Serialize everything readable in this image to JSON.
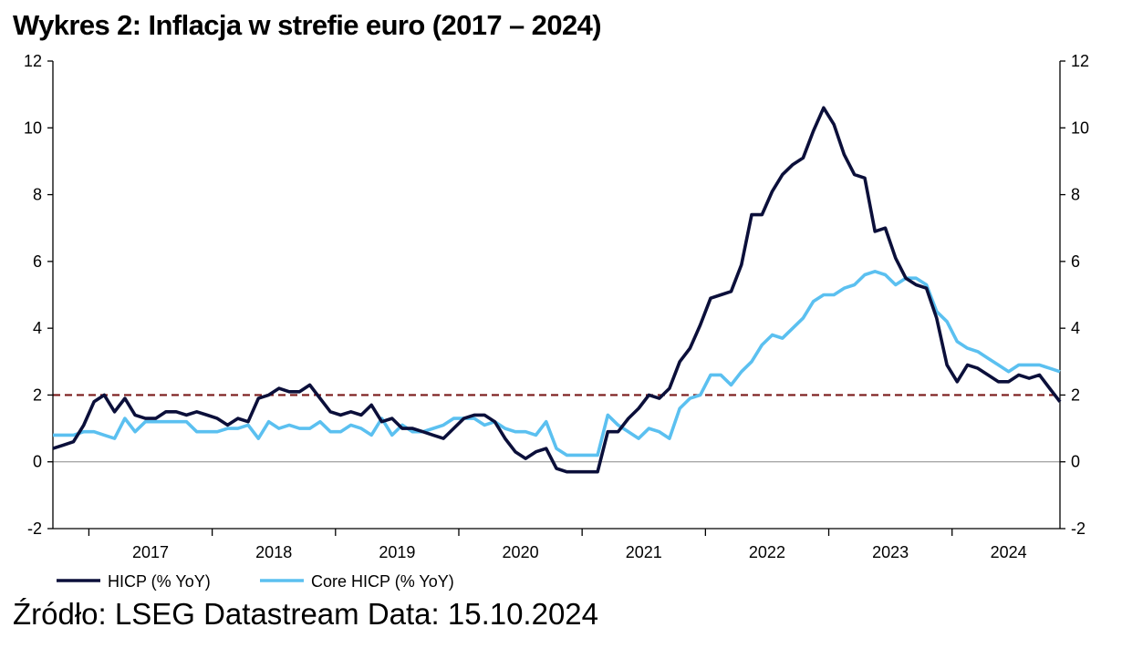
{
  "title": "Wykres 2: Inflacja w strefie euro (2017 – 2024)",
  "source": "Źródło: LSEG Datastream Data: 15.10.2024",
  "chart_data": {
    "type": "line",
    "xlabel": "",
    "ylabel": "",
    "ylim": [
      -2,
      12
    ],
    "x_start": "2016-09",
    "x_end": "2024-09",
    "x_ticks": [
      "2017",
      "2018",
      "2019",
      "2020",
      "2021",
      "2022",
      "2023",
      "2024"
    ],
    "y_ticks": [
      "-2",
      "0",
      "2",
      "4",
      "6",
      "8",
      "10",
      "12"
    ],
    "secondary_y_ticks": [
      "-2",
      "0",
      "2",
      "4",
      "6",
      "8",
      "10",
      "12"
    ],
    "grid": false,
    "legend_position": "bottom-left",
    "reference_lines": [
      {
        "y": 2,
        "style": "dashed",
        "color": "#7a1a1a"
      },
      {
        "y": 0,
        "style": "solid",
        "color": "#888888"
      }
    ],
    "series": [
      {
        "name": "HICP (% YoY)",
        "color": "#0b0f3a",
        "values": [
          0.4,
          0.5,
          0.6,
          1.1,
          1.8,
          2.0,
          1.5,
          1.9,
          1.4,
          1.3,
          1.3,
          1.5,
          1.5,
          1.4,
          1.5,
          1.4,
          1.3,
          1.1,
          1.3,
          1.2,
          1.9,
          2.0,
          2.2,
          2.1,
          2.1,
          2.3,
          1.9,
          1.5,
          1.4,
          1.5,
          1.4,
          1.7,
          1.2,
          1.3,
          1.0,
          1.0,
          0.9,
          0.8,
          0.7,
          1.0,
          1.3,
          1.4,
          1.4,
          1.2,
          0.7,
          0.3,
          0.1,
          0.3,
          0.4,
          -0.2,
          -0.3,
          -0.3,
          -0.3,
          -0.3,
          0.9,
          0.9,
          1.3,
          1.6,
          2.0,
          1.9,
          2.2,
          3.0,
          3.4,
          4.1,
          4.9,
          5.0,
          5.1,
          5.9,
          7.4,
          7.4,
          8.1,
          8.6,
          8.9,
          9.1,
          9.9,
          10.6,
          10.1,
          9.2,
          8.6,
          8.5,
          6.9,
          7.0,
          6.1,
          5.5,
          5.3,
          5.2,
          4.3,
          2.9,
          2.4,
          2.9,
          2.8,
          2.6,
          2.4,
          2.4,
          2.6,
          2.5,
          2.6,
          2.2,
          1.8
        ]
      },
      {
        "name": "Core HICP (% YoY)",
        "color": "#5bc0f0",
        "values": [
          0.8,
          0.8,
          0.8,
          0.9,
          0.9,
          0.8,
          0.7,
          1.3,
          0.9,
          1.2,
          1.2,
          1.2,
          1.2,
          1.2,
          0.9,
          0.9,
          0.9,
          1.0,
          1.0,
          1.1,
          0.7,
          1.2,
          1.0,
          1.1,
          1.0,
          1.0,
          1.2,
          0.9,
          0.9,
          1.1,
          1.0,
          0.8,
          1.3,
          0.8,
          1.1,
          0.9,
          0.9,
          1.0,
          1.1,
          1.3,
          1.3,
          1.3,
          1.1,
          1.2,
          1.0,
          0.9,
          0.9,
          0.8,
          1.2,
          0.4,
          0.2,
          0.2,
          0.2,
          0.2,
          1.4,
          1.1,
          0.9,
          0.7,
          1.0,
          0.9,
          0.7,
          1.6,
          1.9,
          2.0,
          2.6,
          2.6,
          2.3,
          2.7,
          3.0,
          3.5,
          3.8,
          3.7,
          4.0,
          4.3,
          4.8,
          5.0,
          5.0,
          5.2,
          5.3,
          5.6,
          5.7,
          5.6,
          5.3,
          5.5,
          5.5,
          5.3,
          4.5,
          4.2,
          3.6,
          3.4,
          3.3,
          3.1,
          2.9,
          2.7,
          2.9,
          2.9,
          2.9,
          2.8,
          2.7
        ]
      }
    ]
  }
}
